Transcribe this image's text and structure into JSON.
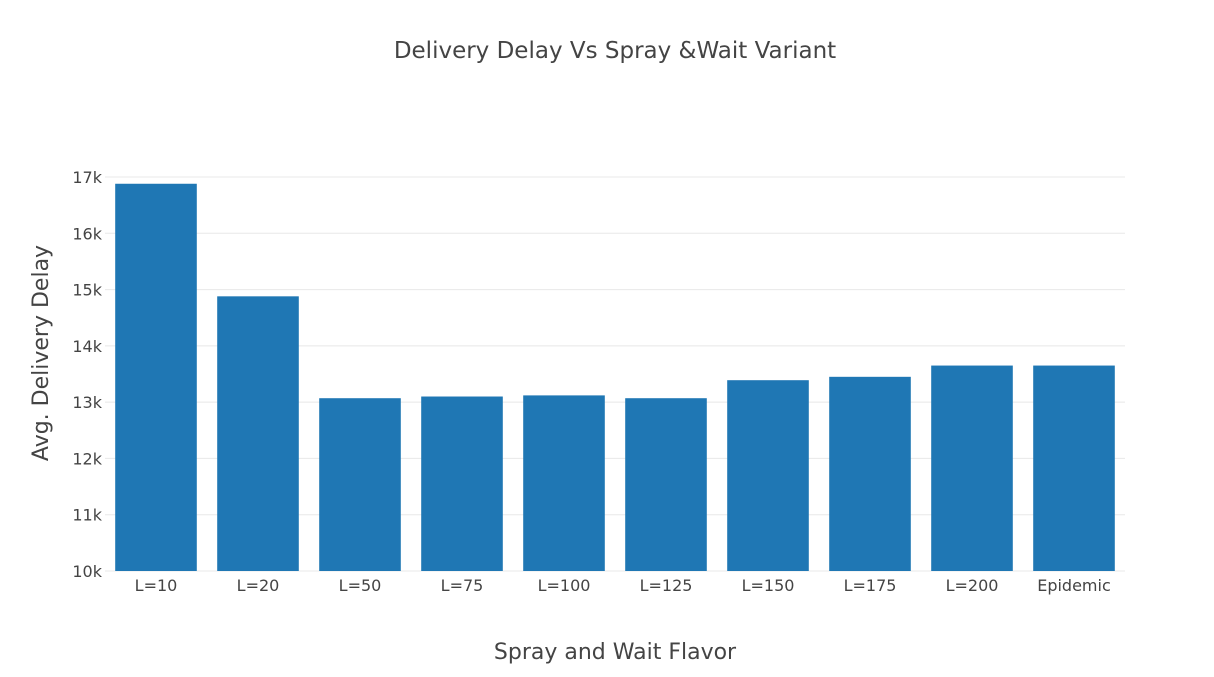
{
  "chart_data": {
    "type": "bar",
    "title": "Delivery Delay Vs Spray &Wait Variant",
    "xlabel": "Spray and Wait Flavor",
    "ylabel": "Avg. Delivery Delay",
    "categories": [
      "L=10",
      "L=20",
      "L=50",
      "L=75",
      "L=100",
      "L=125",
      "L=150",
      "L=175",
      "L=200",
      "Epidemic"
    ],
    "values": [
      16880,
      14880,
      13070,
      13100,
      13120,
      13070,
      13390,
      13450,
      13650,
      13650
    ],
    "ylim": [
      10000,
      17000
    ],
    "yticks": [
      10000,
      11000,
      12000,
      13000,
      14000,
      15000,
      16000,
      17000
    ],
    "ytick_labels": [
      "10k",
      "11k",
      "12k",
      "13k",
      "14k",
      "15k",
      "16k",
      "17k"
    ],
    "grid": true,
    "bar_color": "#1f77b4"
  }
}
